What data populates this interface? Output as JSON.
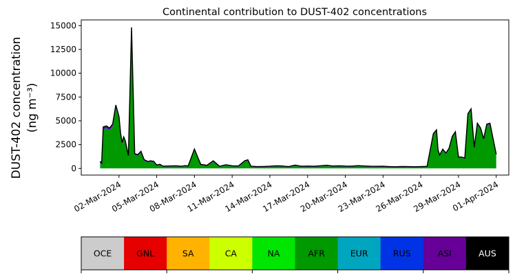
{
  "chart_data": {
    "type": "area",
    "stacked": true,
    "title": "Continental contribution to DUST-402 concentrations",
    "ylabel_line1": "DUST-402 concentration",
    "ylabel_line2": "(ng m⁻³)",
    "ylim": [
      -700,
      15600
    ],
    "yticks": [
      0,
      2500,
      5000,
      7500,
      10000,
      12500,
      15000
    ],
    "x_date_range": [
      "2024-02-28",
      "2024-04-02"
    ],
    "xticks": [
      "02-Mar-2024",
      "05-Mar-2024",
      "08-Mar-2024",
      "11-Mar-2024",
      "14-Mar-2024",
      "17-Mar-2024",
      "20-Mar-2024",
      "23-Mar-2024",
      "26-Mar-2024",
      "29-Mar-2024",
      "01-Apr-2024"
    ],
    "xtick_dates": [
      "2024-03-02",
      "2024-03-05",
      "2024-03-08",
      "2024-03-11",
      "2024-03-14",
      "2024-03-17",
      "2024-03-20",
      "2024-03-23",
      "2024-03-26",
      "2024-03-29",
      "2024-04-01"
    ],
    "total_line_color": "#000000",
    "x": [
      "2024-02-29T12:00",
      "2024-02-29T15:00",
      "2024-02-29T18:00",
      "2024-03-01T00:00",
      "2024-03-01T06:00",
      "2024-03-01T12:00",
      "2024-03-01T18:00",
      "2024-03-02T00:00",
      "2024-03-02T03:00",
      "2024-03-02T06:00",
      "2024-03-02T09:00",
      "2024-03-02T12:00",
      "2024-03-02T18:00",
      "2024-03-03T00:00",
      "2024-03-03T06:00",
      "2024-03-03T12:00",
      "2024-03-03T18:00",
      "2024-03-04T00:00",
      "2024-03-04T06:00",
      "2024-03-04T09:00",
      "2024-03-04T12:00",
      "2024-03-04T15:00",
      "2024-03-04T18:00",
      "2024-03-05T00:00",
      "2024-03-05T06:00",
      "2024-03-05T12:00",
      "2024-03-06T00:00",
      "2024-03-06T12:00",
      "2024-03-07T00:00",
      "2024-03-07T06:00",
      "2024-03-07T12:00",
      "2024-03-08T00:00",
      "2024-03-08T12:00",
      "2024-03-09T00:00",
      "2024-03-09T12:00",
      "2024-03-10T00:00",
      "2024-03-10T12:00",
      "2024-03-11T00:00",
      "2024-03-11T12:00",
      "2024-03-12T00:00",
      "2024-03-12T06:00",
      "2024-03-12T12:00",
      "2024-03-13T00:00",
      "2024-03-13T12:00",
      "2024-03-14T00:00",
      "2024-03-14T12:00",
      "2024-03-15T00:00",
      "2024-03-15T06:00",
      "2024-03-15T12:00",
      "2024-03-16T00:00",
      "2024-03-16T12:00",
      "2024-03-17T00:00",
      "2024-03-17T12:00",
      "2024-03-18T00:00",
      "2024-03-18T12:00",
      "2024-03-19T00:00",
      "2024-03-19T12:00",
      "2024-03-20T00:00",
      "2024-03-20T12:00",
      "2024-03-21T00:00",
      "2024-03-21T12:00",
      "2024-03-22T00:00",
      "2024-03-22T12:00",
      "2024-03-23T00:00",
      "2024-03-23T12:00",
      "2024-03-24T00:00",
      "2024-03-24T12:00",
      "2024-03-25T00:00",
      "2024-03-25T12:00",
      "2024-03-26T00:00",
      "2024-03-26T12:00",
      "2024-03-27T00:00",
      "2024-03-27T06:00",
      "2024-03-27T09:00",
      "2024-03-27T12:00",
      "2024-03-27T18:00",
      "2024-03-28T00:00",
      "2024-03-28T06:00",
      "2024-03-28T12:00",
      "2024-03-28T18:00",
      "2024-03-29T00:00",
      "2024-03-29T06:00",
      "2024-03-29T12:00",
      "2024-03-29T18:00",
      "2024-03-30T00:00",
      "2024-03-30T06:00",
      "2024-03-30T12:00",
      "2024-03-30T18:00",
      "2024-03-31T00:00",
      "2024-03-31T06:00",
      "2024-03-31T12:00",
      "2024-03-31T18:00",
      "2024-04-01T00:00"
    ],
    "series": [
      {
        "name": "OCE",
        "color": "#cccccc",
        "values": [
          0,
          0,
          0,
          0,
          0,
          0,
          0,
          0,
          0,
          0,
          0,
          0,
          0,
          0,
          0,
          0,
          0,
          0,
          0,
          0,
          0,
          0,
          0,
          0,
          0,
          0,
          0,
          0,
          0,
          0,
          0,
          0,
          0,
          0,
          0,
          0,
          0,
          0,
          0,
          0,
          0,
          0,
          0,
          0,
          0,
          0,
          0,
          0,
          0,
          0,
          0,
          0,
          0,
          0,
          0,
          0,
          0,
          0,
          0,
          0,
          0,
          0,
          0,
          0,
          0,
          0,
          0,
          0,
          0,
          0,
          0,
          0,
          0,
          0,
          0,
          0,
          0,
          0,
          0,
          0,
          0,
          0,
          0,
          0,
          0,
          0,
          0,
          0,
          0,
          0,
          0,
          0,
          0
        ]
      },
      {
        "name": "GNL",
        "color": "#e60000",
        "values": [
          0,
          0,
          0,
          0,
          0,
          0,
          0,
          0,
          0,
          0,
          0,
          0,
          0,
          0,
          0,
          0,
          0,
          0,
          0,
          0,
          0,
          0,
          0,
          0,
          0,
          0,
          0,
          0,
          0,
          0,
          0,
          0,
          0,
          0,
          0,
          0,
          0,
          0,
          0,
          0,
          0,
          0,
          0,
          0,
          0,
          0,
          0,
          0,
          0,
          0,
          0,
          0,
          0,
          0,
          0,
          0,
          0,
          0,
          0,
          0,
          0,
          0,
          0,
          0,
          0,
          0,
          0,
          0,
          0,
          0,
          0,
          0,
          0,
          0,
          0,
          0,
          0,
          0,
          0,
          0,
          0,
          0,
          0,
          0,
          0,
          0,
          0,
          0,
          0,
          0,
          0,
          0,
          0
        ]
      },
      {
        "name": "SA",
        "color": "#ffb300",
        "values": [
          0,
          0,
          0,
          0,
          0,
          0,
          0,
          0,
          0,
          0,
          0,
          0,
          0,
          0,
          0,
          0,
          0,
          0,
          0,
          0,
          0,
          0,
          0,
          0,
          0,
          0,
          0,
          0,
          0,
          0,
          0,
          0,
          0,
          0,
          0,
          0,
          0,
          0,
          0,
          0,
          0,
          0,
          0,
          0,
          0,
          0,
          0,
          0,
          0,
          0,
          0,
          0,
          0,
          0,
          0,
          0,
          0,
          0,
          0,
          0,
          0,
          0,
          0,
          0,
          0,
          0,
          0,
          0,
          0,
          0,
          0,
          0,
          0,
          0,
          0,
          0,
          0,
          0,
          0,
          0,
          0,
          0,
          0,
          0,
          0,
          0,
          0,
          0,
          0,
          0,
          0,
          0,
          0
        ]
      },
      {
        "name": "CA",
        "color": "#ccff00",
        "values": [
          0,
          0,
          0,
          0,
          0,
          0,
          0,
          0,
          0,
          0,
          0,
          0,
          0,
          0,
          0,
          0,
          0,
          0,
          0,
          0,
          0,
          0,
          0,
          0,
          0,
          0,
          0,
          0,
          0,
          0,
          0,
          0,
          0,
          0,
          0,
          0,
          0,
          0,
          0,
          0,
          0,
          0,
          0,
          0,
          0,
          0,
          0,
          0,
          0,
          0,
          0,
          0,
          0,
          0,
          0,
          0,
          0,
          0,
          0,
          0,
          0,
          0,
          0,
          0,
          0,
          0,
          0,
          0,
          0,
          0,
          0,
          0,
          0,
          0,
          0,
          0,
          0,
          0,
          0,
          0,
          0,
          0,
          0,
          0,
          0,
          0,
          0,
          0,
          0,
          0,
          0,
          0,
          0
        ]
      },
      {
        "name": "NA",
        "color": "#00e600",
        "values": [
          0,
          0,
          0,
          0,
          0,
          0,
          0,
          0,
          0,
          0,
          0,
          0,
          0,
          0,
          0,
          0,
          0,
          0,
          0,
          0,
          0,
          0,
          0,
          0,
          0,
          0,
          0,
          0,
          0,
          0,
          0,
          0,
          0,
          0,
          0,
          0,
          0,
          0,
          0,
          0,
          0,
          0,
          0,
          0,
          0,
          0,
          0,
          0,
          0,
          0,
          0,
          0,
          0,
          0,
          0,
          0,
          0,
          0,
          0,
          0,
          0,
          0,
          0,
          0,
          0,
          0,
          0,
          0,
          0,
          0,
          0,
          0,
          0,
          0,
          0,
          0,
          0,
          0,
          0,
          0,
          0,
          0,
          0,
          0,
          0,
          0,
          0,
          0,
          0,
          0,
          0,
          0,
          0
        ]
      },
      {
        "name": "AFR",
        "color": "#009900",
        "values": [
          450,
          350,
          4100,
          4200,
          4000,
          4400,
          6400,
          5200,
          3500,
          2500,
          3100,
          2700,
          1200,
          14600,
          1400,
          1300,
          1650,
          800,
          650,
          600,
          700,
          650,
          650,
          280,
          350,
          160,
          180,
          200,
          150,
          220,
          180,
          1900,
          350,
          250,
          700,
          150,
          300,
          200,
          180,
          700,
          800,
          150,
          120,
          130,
          150,
          200,
          180,
          140,
          120,
          260,
          150,
          170,
          150,
          200,
          250,
          180,
          200,
          170,
          160,
          220,
          180,
          150,
          140,
          150,
          120,
          100,
          130,
          120,
          100,
          120,
          140,
          3500,
          3900,
          1800,
          1300,
          1900,
          1500,
          2000,
          3200,
          3700,
          1100,
          1100,
          1000,
          5600,
          6100,
          2100,
          4600,
          4100,
          3000,
          4500,
          4600,
          3000,
          1400
        ]
      },
      {
        "name": "EUR",
        "color": "#00a6bf",
        "values": [
          0,
          0,
          0,
          0,
          0,
          0,
          0,
          0,
          0,
          0,
          0,
          0,
          0,
          0,
          0,
          0,
          0,
          0,
          0,
          0,
          0,
          0,
          0,
          0,
          0,
          0,
          0,
          0,
          0,
          0,
          0,
          0,
          0,
          0,
          0,
          0,
          0,
          0,
          0,
          0,
          0,
          0,
          0,
          0,
          0,
          0,
          0,
          0,
          0,
          0,
          0,
          0,
          0,
          0,
          0,
          0,
          0,
          0,
          0,
          0,
          0,
          0,
          0,
          0,
          0,
          0,
          0,
          0,
          0,
          0,
          0,
          0,
          0,
          0,
          0,
          0,
          0,
          0,
          0,
          0,
          0,
          0,
          0,
          0,
          0,
          0,
          0,
          0,
          0,
          0,
          0,
          0,
          0
        ]
      },
      {
        "name": "RUS",
        "color": "#0033e6",
        "values": [
          50,
          40,
          60,
          60,
          60,
          60,
          60,
          60,
          50,
          50,
          50,
          50,
          40,
          60,
          40,
          40,
          40,
          30,
          30,
          30,
          30,
          30,
          30,
          20,
          20,
          15,
          15,
          15,
          15,
          15,
          15,
          40,
          15,
          15,
          20,
          15,
          15,
          15,
          15,
          20,
          20,
          15,
          15,
          15,
          15,
          15,
          15,
          15,
          15,
          15,
          15,
          15,
          15,
          15,
          15,
          15,
          15,
          15,
          15,
          15,
          15,
          15,
          15,
          15,
          15,
          15,
          15,
          15,
          15,
          15,
          15,
          40,
          40,
          30,
          30,
          30,
          30,
          30,
          40,
          40,
          20,
          20,
          20,
          40,
          40,
          30,
          40,
          40,
          30,
          40,
          40,
          30,
          20
        ]
      },
      {
        "name": "ASI",
        "color": "#660099",
        "values": [
          250,
          200,
          200,
          200,
          180,
          200,
          200,
          200,
          180,
          160,
          160,
          160,
          120,
          150,
          110,
          110,
          110,
          90,
          80,
          80,
          80,
          80,
          80,
          60,
          60,
          60,
          60,
          60,
          60,
          60,
          60,
          90,
          60,
          60,
          80,
          60,
          70,
          60,
          60,
          80,
          80,
          60,
          60,
          60,
          60,
          60,
          60,
          60,
          60,
          70,
          60,
          60,
          60,
          60,
          60,
          60,
          60,
          60,
          60,
          60,
          60,
          60,
          60,
          60,
          60,
          60,
          60,
          60,
          60,
          60,
          60,
          110,
          110,
          90,
          80,
          90,
          80,
          90,
          110,
          110,
          70,
          70,
          70,
          110,
          110,
          80,
          110,
          110,
          90,
          110,
          110,
          80,
          60
        ]
      },
      {
        "name": "AUS",
        "color": "#000000",
        "values": [
          0,
          0,
          0,
          0,
          0,
          0,
          0,
          0,
          0,
          0,
          0,
          0,
          0,
          0,
          0,
          0,
          0,
          0,
          0,
          0,
          0,
          0,
          0,
          0,
          0,
          0,
          0,
          0,
          0,
          0,
          0,
          0,
          0,
          0,
          0,
          0,
          0,
          0,
          0,
          0,
          0,
          0,
          0,
          0,
          0,
          0,
          0,
          0,
          0,
          0,
          0,
          0,
          0,
          0,
          0,
          0,
          0,
          0,
          0,
          0,
          0,
          0,
          0,
          0,
          0,
          0,
          0,
          0,
          0,
          0,
          0,
          0,
          0,
          0,
          0,
          0,
          0,
          0,
          0,
          0,
          0,
          0,
          0,
          0,
          0,
          0,
          0,
          0,
          0,
          0,
          0,
          0,
          0
        ]
      }
    ],
    "legend_placement": "bottom (color bar below axes)",
    "grid": false
  }
}
